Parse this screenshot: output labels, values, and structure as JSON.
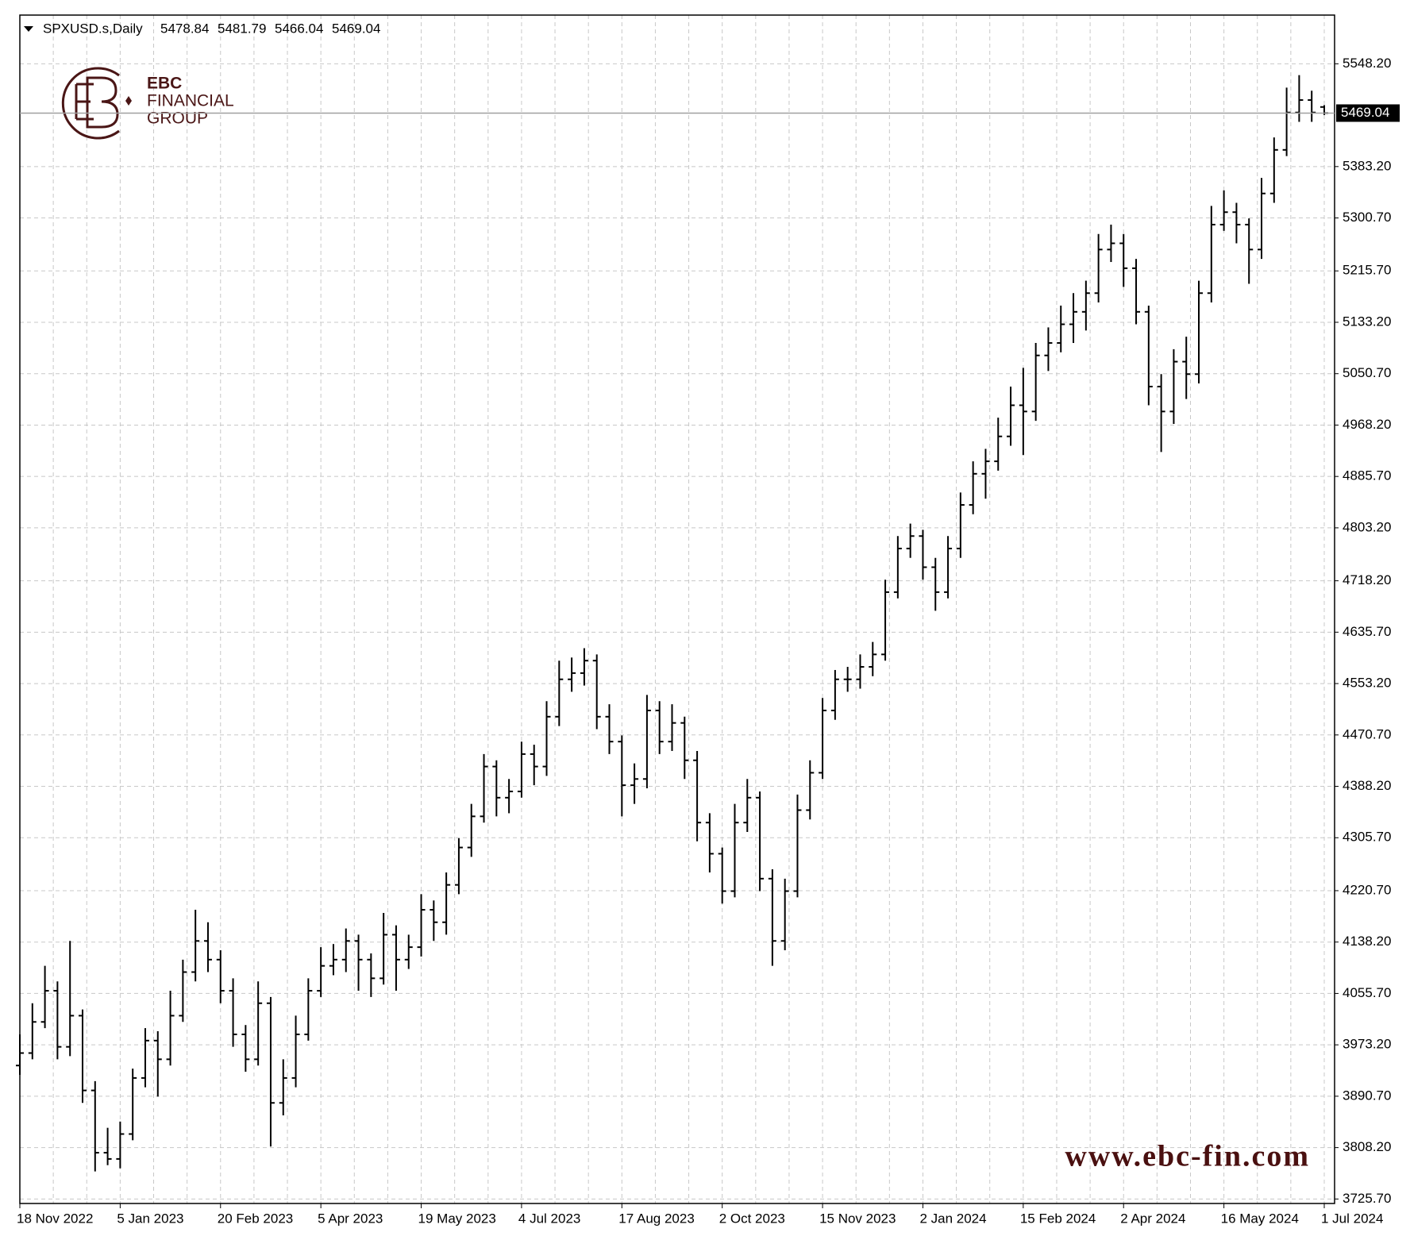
{
  "chart_data": {
    "type": "ohlc",
    "symbol": "SPXUSD.s,Daily",
    "header_ohlc": [
      5478.84,
      5481.79,
      5466.04,
      5469.04
    ],
    "logo_text": [
      "EBC",
      "FINANCIAL",
      "GROUP"
    ],
    "watermark": "www.ebc-fin.com",
    "color": "#000000",
    "grid": true,
    "ylim": [
      3718.5,
      5626.4
    ],
    "yticks": [
      {
        "value": 3725.7,
        "label": "3725.70"
      },
      {
        "value": 3808.2,
        "label": "3808.20"
      },
      {
        "value": 3890.7,
        "label": "3890.70"
      },
      {
        "value": 3973.2,
        "label": "3973.20"
      },
      {
        "value": 4055.7,
        "label": "4055.70"
      },
      {
        "value": 4138.2,
        "label": "4138.20"
      },
      {
        "value": 4220.7,
        "label": "4220.70"
      },
      {
        "value": 4305.7,
        "label": "4305.70"
      },
      {
        "value": 4388.2,
        "label": "4388.20"
      },
      {
        "value": 4470.7,
        "label": "4470.70"
      },
      {
        "value": 4553.2,
        "label": "4553.20"
      },
      {
        "value": 4635.7,
        "label": "4635.70"
      },
      {
        "value": 4718.2,
        "label": "4718.20"
      },
      {
        "value": 4803.2,
        "label": "4803.20"
      },
      {
        "value": 4885.7,
        "label": "4885.70"
      },
      {
        "value": 4968.2,
        "label": "4968.20"
      },
      {
        "value": 5050.7,
        "label": "5050.70"
      },
      {
        "value": 5133.2,
        "label": "5133.20"
      },
      {
        "value": 5215.7,
        "label": "5215.70"
      },
      {
        "value": 5300.7,
        "label": "5300.70"
      },
      {
        "value": 5383.2,
        "label": "5383.20"
      },
      {
        "value": 5548.2,
        "label": "5548.20"
      }
    ],
    "current_price": 5469.04,
    "categories": [
      "18 Nov 2022",
      null,
      null,
      null,
      null,
      null,
      null,
      null,
      "5 Jan 2023",
      null,
      null,
      null,
      null,
      null,
      null,
      null,
      "20 Feb 2023",
      null,
      null,
      null,
      null,
      null,
      null,
      null,
      "5 Apr 2023",
      null,
      null,
      null,
      null,
      null,
      null,
      null,
      "19 May 2023",
      null,
      null,
      null,
      null,
      null,
      null,
      null,
      "4 Jul 2023",
      null,
      null,
      null,
      null,
      null,
      null,
      null,
      "17 Aug 2023",
      null,
      null,
      null,
      null,
      null,
      null,
      null,
      "2 Oct 2023",
      null,
      null,
      null,
      null,
      null,
      null,
      null,
      "15 Nov 2023",
      null,
      null,
      null,
      null,
      null,
      null,
      null,
      "2 Jan 2024",
      null,
      null,
      null,
      null,
      null,
      null,
      null,
      "15 Feb 2024",
      null,
      null,
      null,
      null,
      null,
      null,
      null,
      "2 Apr 2024",
      null,
      null,
      null,
      null,
      null,
      null,
      null,
      "16 May 2024",
      null,
      null,
      null,
      null,
      null,
      null,
      null,
      "1 Jul 2024"
    ],
    "open": [
      3940,
      3960,
      4010,
      4060,
      3970,
      4020,
      3900,
      3800,
      3790,
      3830,
      3920,
      3980,
      3950,
      4020,
      4090,
      4140,
      4110,
      4060,
      3990,
      3950,
      4040,
      3880,
      3920,
      3990,
      4060,
      4100,
      4110,
      4140,
      4110,
      4080,
      4150,
      4110,
      4130,
      4190,
      4170,
      4230,
      4290,
      4340,
      4420,
      4370,
      4380,
      4440,
      4420,
      4500,
      4560,
      4570,
      4590,
      4500,
      4460,
      4390,
      4400,
      4510,
      4460,
      4490,
      4430,
      4330,
      4280,
      4220,
      4330,
      4370,
      4240,
      4140,
      4220,
      4350,
      4410,
      4510,
      4560,
      4560,
      4580,
      4600,
      4700,
      4770,
      4790,
      4740,
      4700,
      4770,
      4840,
      4890,
      4910,
      4950,
      5000,
      4990,
      5080,
      5100,
      5130,
      5150,
      5180,
      5250,
      5260,
      5220,
      5150,
      5030,
      4990,
      5070,
      5050,
      5180,
      5290,
      5310,
      5290,
      5250,
      5340,
      5410,
      5470,
      5490,
      5478.84
    ],
    "high": [
      3990,
      4040,
      4100,
      4075,
      4140,
      4030,
      3915,
      3840,
      3850,
      3935,
      4000,
      3995,
      4060,
      4110,
      4190,
      4170,
      4125,
      4080,
      4005,
      4075,
      4050,
      3950,
      4020,
      4080,
      4130,
      4135,
      4160,
      4150,
      4120,
      4185,
      4165,
      4150,
      4215,
      4205,
      4250,
      4305,
      4360,
      4440,
      4430,
      4400,
      4460,
      4455,
      4525,
      4590,
      4595,
      4610,
      4600,
      4520,
      4470,
      4425,
      4535,
      4525,
      4520,
      4500,
      4445,
      4345,
      4290,
      4360,
      4400,
      4380,
      4255,
      4240,
      4375,
      4430,
      4530,
      4575,
      4580,
      4600,
      4620,
      4720,
      4790,
      4810,
      4800,
      4755,
      4790,
      4860,
      4910,
      4930,
      4980,
      5030,
      5060,
      5100,
      5125,
      5160,
      5180,
      5200,
      5275,
      5290,
      5275,
      5235,
      5160,
      5050,
      5090,
      5110,
      5200,
      5320,
      5345,
      5325,
      5300,
      5365,
      5430,
      5510,
      5530,
      5505,
      5481.79
    ],
    "low": [
      3925,
      3950,
      4000,
      3950,
      3955,
      3880,
      3770,
      3780,
      3775,
      3820,
      3905,
      3890,
      3940,
      4010,
      4075,
      4090,
      4040,
      3970,
      3930,
      3940,
      3810,
      3860,
      3905,
      3980,
      4050,
      4085,
      4090,
      4060,
      4050,
      4070,
      4060,
      4095,
      4115,
      4140,
      4150,
      4215,
      4275,
      4330,
      4340,
      4345,
      4370,
      4390,
      4405,
      4485,
      4540,
      4550,
      4480,
      4440,
      4340,
      4360,
      4385,
      4440,
      4445,
      4400,
      4300,
      4250,
      4200,
      4210,
      4315,
      4220,
      4100,
      4125,
      4210,
      4335,
      4400,
      4495,
      4540,
      4545,
      4565,
      4590,
      4690,
      4755,
      4720,
      4670,
      4690,
      4755,
      4825,
      4850,
      4895,
      4935,
      4920,
      4975,
      5055,
      5085,
      5100,
      5120,
      5165,
      5230,
      5190,
      5130,
      5000,
      4925,
      4970,
      5010,
      5035,
      5165,
      5280,
      5260,
      5195,
      5235,
      5325,
      5400,
      5455,
      5455,
      5466.04
    ],
    "close": [
      3960,
      4010,
      4060,
      3970,
      4020,
      3900,
      3800,
      3790,
      3830,
      3920,
      3980,
      3950,
      4020,
      4090,
      4140,
      4110,
      4060,
      3990,
      3950,
      4040,
      3880,
      3920,
      3990,
      4060,
      4100,
      4110,
      4140,
      4110,
      4080,
      4150,
      4110,
      4130,
      4190,
      4170,
      4230,
      4290,
      4340,
      4420,
      4370,
      4380,
      4440,
      4420,
      4500,
      4560,
      4570,
      4590,
      4500,
      4460,
      4390,
      4400,
      4510,
      4460,
      4490,
      4430,
      4330,
      4280,
      4220,
      4330,
      4370,
      4240,
      4140,
      4220,
      4350,
      4410,
      4510,
      4560,
      4560,
      4580,
      4600,
      4700,
      4770,
      4790,
      4740,
      4700,
      4770,
      4840,
      4890,
      4910,
      4950,
      5000,
      4990,
      5080,
      5100,
      5130,
      5150,
      5180,
      5250,
      5260,
      5220,
      5150,
      5030,
      4990,
      5070,
      5050,
      5180,
      5290,
      5310,
      5290,
      5250,
      5340,
      5410,
      5470,
      5490,
      5470,
      5469.04
    ]
  }
}
